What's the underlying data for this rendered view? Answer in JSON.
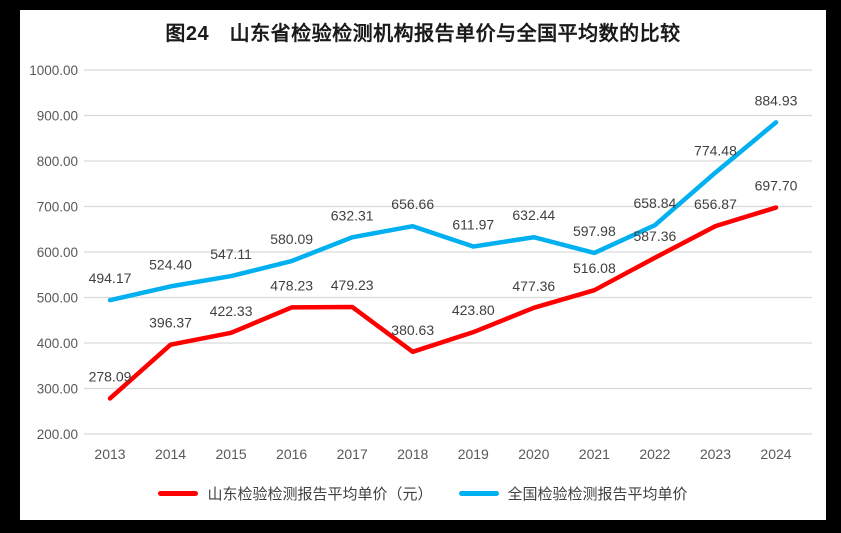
{
  "chart": {
    "title": "图24　山东省检验检测机构报告单价与全国平均数的比较"
  },
  "chart_data": {
    "type": "line",
    "title": "图24　山东省检验检测机构报告单价与全国平均数的比较",
    "categories": [
      "2013",
      "2014",
      "2015",
      "2016",
      "2017",
      "2018",
      "2019",
      "2020",
      "2021",
      "2022",
      "2023",
      "2024"
    ],
    "series": [
      {
        "name": "山东检验检测报告平均单价（元）",
        "color": "#FF0000",
        "values": [
          278.09,
          396.37,
          422.33,
          478.23,
          479.23,
          380.63,
          423.8,
          477.36,
          516.08,
          587.36,
          656.87,
          697.7
        ]
      },
      {
        "name": "全国检验检测报告平均单价",
        "color": "#00B0F0",
        "values": [
          494.17,
          524.4,
          547.11,
          580.09,
          632.31,
          656.66,
          611.97,
          632.44,
          597.98,
          658.84,
          774.48,
          884.93
        ]
      }
    ],
    "xlabel": "",
    "ylabel": "",
    "ylim": [
      200,
      1000
    ],
    "ytick_step": 100,
    "ytick_labels": [
      "200.00",
      "300.00",
      "400.00",
      "500.00",
      "600.00",
      "700.00",
      "800.00",
      "900.00",
      "1000.00"
    ],
    "grid": "horizontal",
    "data_labels": true,
    "legend_position": "bottom",
    "colors": {
      "grid": "#D9D9D9",
      "axis_text": "#595959",
      "data_label_text": "#404040",
      "frame": "#000000",
      "background": "#FFFFFF"
    }
  }
}
